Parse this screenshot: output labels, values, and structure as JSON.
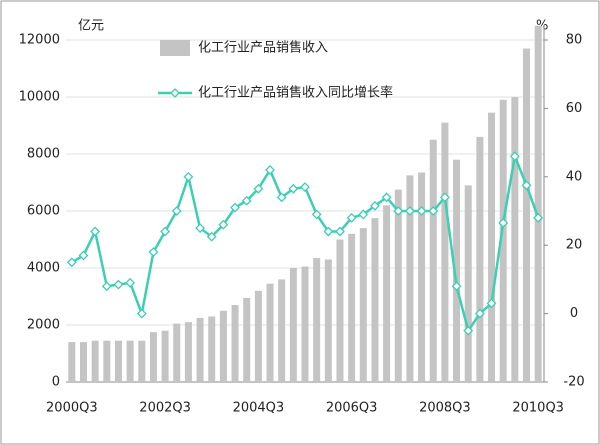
{
  "chart_data": {
    "type": "combo",
    "y_label": "亿元",
    "y2_label": "%",
    "categories": [
      "2000Q3",
      null,
      null,
      null,
      null,
      null,
      null,
      null,
      "2002Q3",
      null,
      null,
      null,
      null,
      null,
      null,
      null,
      "2004Q3",
      null,
      null,
      null,
      null,
      null,
      null,
      null,
      "2006Q3",
      null,
      null,
      null,
      null,
      null,
      null,
      null,
      "2008Q3",
      null,
      null,
      null,
      null,
      null,
      null,
      null,
      "2010Q3"
    ],
    "series": [
      {
        "name": "化工行业产品销售收入",
        "type": "bar",
        "color": "#c4c4c4",
        "values": [
          1400,
          1400,
          1450,
          1450,
          1450,
          1450,
          1450,
          1750,
          1800,
          2050,
          2100,
          2250,
          2300,
          2500,
          2700,
          2950,
          3200,
          3450,
          3600,
          4000,
          4050,
          4350,
          4300,
          5000,
          5200,
          5400,
          5750,
          6200,
          6750,
          7250,
          7350,
          8500,
          9100,
          7800,
          6900,
          8600,
          9450,
          9900,
          10000,
          11700,
          12500
        ]
      },
      {
        "name": "化工行业产品销售收入同比增长率",
        "type": "line",
        "axis": "y2",
        "color": "#3ccfb2",
        "values": [
          15,
          17,
          24,
          8,
          8.5,
          9,
          0,
          18,
          24,
          30,
          40,
          25,
          22.5,
          26,
          31,
          33,
          36.5,
          42,
          34,
          36.5,
          37,
          29,
          24,
          24,
          28,
          29,
          31.5,
          34,
          30,
          30,
          30,
          30,
          34,
          8,
          -5,
          0,
          3,
          26.5,
          46,
          37.5,
          28
        ]
      }
    ],
    "ylim": [
      0,
      12000
    ],
    "yticks": [
      0,
      2000,
      4000,
      6000,
      8000,
      10000,
      12000
    ],
    "y2lim": [
      -20,
      80
    ],
    "y2ticks": [
      -20,
      0,
      20,
      40,
      60,
      80
    ],
    "grid": true
  }
}
